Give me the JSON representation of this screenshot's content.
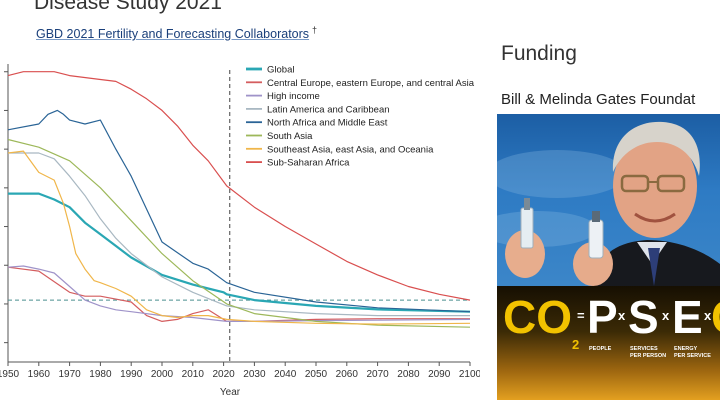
{
  "page": {
    "heading": "Disease Study 2021",
    "authors": "GBD 2021 Fertility and Forecasting Collaborators",
    "authors_mark": "†"
  },
  "chart_data": {
    "type": "line",
    "xlabel": "Year",
    "ylabel": "",
    "xlim": [
      1950,
      2100
    ],
    "x_ticks": [
      "1950",
      "1960",
      "1970",
      "1980",
      "1990",
      "2000",
      "2010",
      "2020",
      "2030",
      "2040",
      "2050",
      "2060",
      "2070",
      "2080",
      "2090",
      "2100"
    ],
    "forecast_start_year": 2022,
    "reference_line_y": 2.1,
    "legend_position": "top-right",
    "series": [
      {
        "name": "Global",
        "color": "#2aa7b4",
        "width": 2.2,
        "x": [
          1950,
          1960,
          1965,
          1970,
          1975,
          1980,
          1985,
          1990,
          2000,
          2010,
          2015,
          2020,
          2021,
          2030,
          2050,
          2070,
          2100
        ],
        "y": [
          4.85,
          4.85,
          4.7,
          4.5,
          4.1,
          3.8,
          3.5,
          3.2,
          2.75,
          2.5,
          2.4,
          2.3,
          2.25,
          2.1,
          1.95,
          1.86,
          1.8
        ]
      },
      {
        "name": "Central Europe, eastern Europe, and central Asia",
        "color": "#d45d5f",
        "width": 1.2,
        "x": [
          1950,
          1960,
          1970,
          1975,
          1980,
          1990,
          1995,
          2000,
          2005,
          2010,
          2015,
          2021,
          2030,
          2050,
          2070,
          2100
        ],
        "y": [
          2.95,
          2.85,
          2.3,
          2.2,
          2.2,
          2.05,
          1.7,
          1.55,
          1.6,
          1.75,
          1.85,
          1.55,
          1.55,
          1.6,
          1.62,
          1.62
        ]
      },
      {
        "name": "High income",
        "color": "#9f93c9",
        "width": 1.2,
        "x": [
          1950,
          1955,
          1960,
          1965,
          1970,
          1975,
          1980,
          1985,
          1990,
          2000,
          2010,
          2021,
          2030,
          2050,
          2070,
          2100
        ],
        "y": [
          2.95,
          2.98,
          2.9,
          2.8,
          2.45,
          2.1,
          1.95,
          1.85,
          1.8,
          1.7,
          1.65,
          1.55,
          1.55,
          1.57,
          1.58,
          1.6
        ]
      },
      {
        "name": "Latin America and Caribbean",
        "color": "#a9b8c2",
        "width": 1.2,
        "x": [
          1950,
          1960,
          1965,
          1970,
          1975,
          1980,
          1985,
          1990,
          2000,
          2010,
          2021,
          2030,
          2050,
          2070,
          2100
        ],
        "y": [
          5.9,
          5.9,
          5.75,
          5.3,
          4.8,
          4.2,
          3.7,
          3.3,
          2.7,
          2.3,
          1.95,
          1.85,
          1.75,
          1.7,
          1.7
        ]
      },
      {
        "name": "North Africa and Middle East",
        "color": "#2a6496",
        "width": 1.2,
        "x": [
          1950,
          1960,
          1963,
          1966,
          1968,
          1970,
          1975,
          1980,
          1985,
          1990,
          2000,
          2010,
          2015,
          2021,
          2030,
          2050,
          2070,
          2100
        ],
        "y": [
          6.5,
          6.65,
          6.9,
          7.0,
          6.9,
          6.75,
          6.65,
          6.75,
          6.0,
          5.3,
          3.6,
          3.05,
          2.9,
          2.55,
          2.3,
          2.05,
          1.9,
          1.8
        ]
      },
      {
        "name": "South Asia",
        "color": "#9db85a",
        "width": 1.2,
        "x": [
          1950,
          1960,
          1970,
          1980,
          1990,
          2000,
          2010,
          2021,
          2030,
          2050,
          2070,
          2100
        ],
        "y": [
          6.25,
          6.05,
          5.7,
          5.0,
          4.15,
          3.3,
          2.6,
          2.0,
          1.75,
          1.55,
          1.45,
          1.4
        ]
      },
      {
        "name": "Southeast Asia, east Asia, and Oceania",
        "color": "#f0b64a",
        "width": 1.2,
        "x": [
          1950,
          1955,
          1960,
          1965,
          1968,
          1970,
          1972,
          1975,
          1978,
          1980,
          1985,
          1990,
          1995,
          2000,
          2005,
          2010,
          2015,
          2021,
          2030,
          2050,
          2070,
          2100
        ],
        "y": [
          5.9,
          5.95,
          5.4,
          5.2,
          4.6,
          4.0,
          3.3,
          2.9,
          2.6,
          2.55,
          2.4,
          2.2,
          1.85,
          1.7,
          1.65,
          1.7,
          1.7,
          1.6,
          1.55,
          1.5,
          1.48,
          1.5
        ]
      },
      {
        "name": "Sub-Saharan Africa",
        "color": "#d94f4f",
        "width": 1.2,
        "x": [
          1950,
          1955,
          1960,
          1965,
          1970,
          1980,
          1985,
          1990,
          1995,
          2000,
          2005,
          2010,
          2015,
          2021,
          2030,
          2040,
          2050,
          2060,
          2070,
          2080,
          2090,
          2100
        ],
        "y": [
          7.9,
          8.0,
          8.0,
          8.0,
          7.9,
          7.8,
          7.75,
          7.55,
          7.3,
          7.0,
          6.6,
          6.1,
          5.7,
          5.05,
          4.5,
          4.0,
          3.55,
          3.1,
          2.75,
          2.45,
          2.25,
          2.1
        ]
      }
    ]
  },
  "sidebar": {
    "title": "Funding",
    "subtitle": "Bill & Melinda Gates Foundat"
  },
  "photo": {
    "co2": "CO",
    "two": "2",
    "equals": "=",
    "p": "P",
    "s": "S",
    "e": "E",
    "times": "x",
    "last": "C",
    "label_people": "PEOPLE",
    "label_services_1": "SERVICES",
    "label_services_2": "PER PERSON",
    "label_energy_1": "ENERGY",
    "label_energy_2": "PER SERVICE",
    "co2_color": "#f2c200"
  }
}
